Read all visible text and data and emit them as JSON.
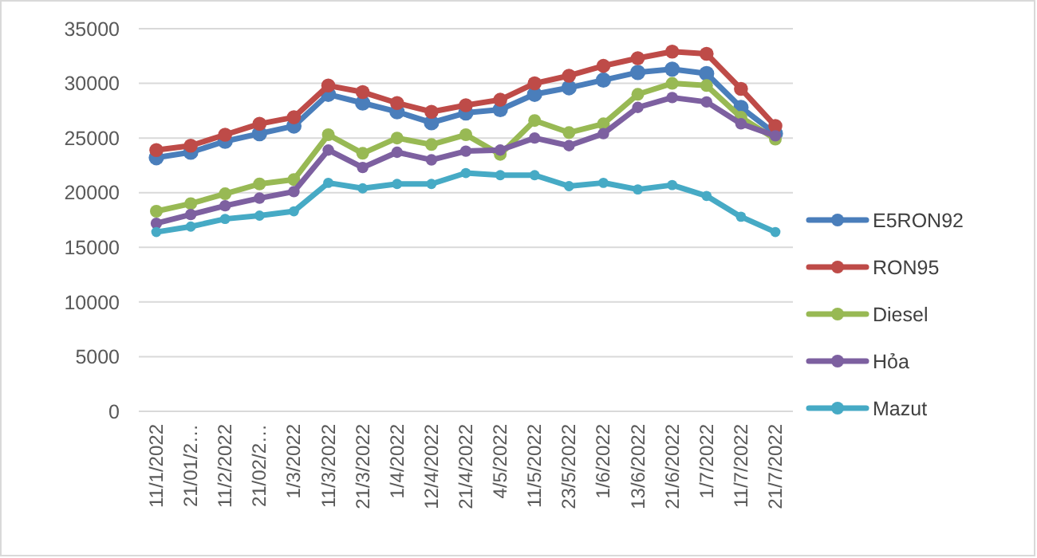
{
  "chart_data": {
    "type": "line",
    "categories": [
      "11/1/2022",
      "21/01/2…",
      "11/2/2022",
      "21/02/2…",
      "1/3/2022",
      "11/3/2022",
      "21/3/2022",
      "1/4/2022",
      "12/4/2022",
      "21/4/2022",
      "4/5/2022",
      "11/5/2022",
      "23/5/2022",
      "1/6/2022",
      "13/6/2022",
      "21/6/2022",
      "1/7/2022",
      "11/7/2022",
      "21/7/2022"
    ],
    "series": [
      {
        "name": "E5RON92",
        "color": "#4a7ebb",
        "values": [
          23200,
          23700,
          24700,
          25400,
          26100,
          29000,
          28200,
          27400,
          26400,
          27300,
          27600,
          29000,
          29600,
          30300,
          31000,
          31300,
          30900,
          27800,
          25400
        ]
      },
      {
        "name": "RON95",
        "color": "#be4b48",
        "values": [
          23900,
          24300,
          25300,
          26300,
          26900,
          29800,
          29200,
          28200,
          27400,
          28000,
          28500,
          30000,
          30700,
          31600,
          32300,
          32900,
          32700,
          29500,
          26100
        ]
      },
      {
        "name": "Diesel",
        "color": "#98b954",
        "values": [
          18300,
          19000,
          19900,
          20800,
          21200,
          25300,
          23600,
          25000,
          24400,
          25300,
          23500,
          26600,
          25500,
          26300,
          29000,
          30000,
          29800,
          26900,
          24900
        ]
      },
      {
        "name": "Hỏa",
        "color": "#7d60a0",
        "values": [
          17200,
          18000,
          18800,
          19500,
          20100,
          23900,
          22300,
          23700,
          23000,
          23800,
          23900,
          25000,
          24300,
          25400,
          27800,
          28700,
          28300,
          26300,
          25200
        ]
      },
      {
        "name": "Mazut",
        "color": "#46aac5",
        "values": [
          16400,
          16900,
          17600,
          17900,
          18300,
          20900,
          20400,
          20800,
          20800,
          21800,
          21600,
          21600,
          20600,
          20900,
          20300,
          20700,
          19700,
          17800,
          16400
        ]
      }
    ],
    "ylim": [
      0,
      35000
    ],
    "yticks": [
      0,
      5000,
      10000,
      15000,
      20000,
      25000,
      30000,
      35000
    ],
    "grid": "y",
    "legend": "right",
    "marker": "circle",
    "line_style": "solid"
  }
}
